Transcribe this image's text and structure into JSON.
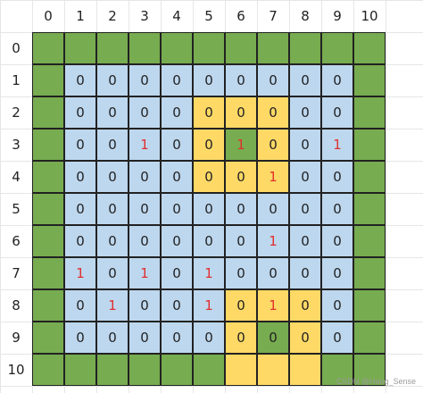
{
  "col_headers": [
    "0",
    "1",
    "2",
    "3",
    "4",
    "5",
    "6",
    "7",
    "8",
    "9",
    "10"
  ],
  "row_headers": [
    "0",
    "1",
    "2",
    "3",
    "4",
    "5",
    "6",
    "7",
    "8",
    "9",
    "10"
  ],
  "colors": {
    "green": "#77ac50",
    "blue": "#bdd7ee",
    "yellow": "#ffd966",
    "red_text": "#e03030",
    "dark_text": "#222222"
  },
  "grid": [
    [
      "G",
      "G",
      "G",
      "G",
      "G",
      "G",
      "G",
      "G",
      "G",
      "G",
      "G"
    ],
    [
      "G",
      "B0",
      "B0",
      "B0",
      "B0",
      "B0",
      "B0",
      "B0",
      "B0",
      "B0",
      "G"
    ],
    [
      "G",
      "B0",
      "B0",
      "B0",
      "B0",
      "Y0",
      "Y0",
      "Y0",
      "B0",
      "B0",
      "G"
    ],
    [
      "G",
      "B0",
      "B0",
      "B1",
      "B0",
      "Y0",
      "G1",
      "Y0",
      "B0",
      "B1",
      "G"
    ],
    [
      "G",
      "B0",
      "B0",
      "B0",
      "B0",
      "Y0",
      "Y0",
      "Y1",
      "B0",
      "B0",
      "G"
    ],
    [
      "G",
      "B0",
      "B0",
      "B0",
      "B0",
      "B0",
      "B0",
      "B0",
      "B0",
      "B0",
      "G"
    ],
    [
      "G",
      "B0",
      "B0",
      "B0",
      "B0",
      "B0",
      "B0",
      "B1",
      "B0",
      "B0",
      "G"
    ],
    [
      "G",
      "B1",
      "B0",
      "B1",
      "B0",
      "B1",
      "B0",
      "B0",
      "B0",
      "B0",
      "G"
    ],
    [
      "G",
      "B0",
      "B1",
      "B0",
      "B0",
      "B1",
      "Y0",
      "Y1",
      "Y0",
      "B0",
      "G"
    ],
    [
      "G",
      "B0",
      "B0",
      "B0",
      "B0",
      "B0",
      "Y0",
      "G0",
      "Y0",
      "B0",
      "G"
    ],
    [
      "G",
      "G",
      "G",
      "G",
      "G",
      "G",
      "Y",
      "Y",
      "Y",
      "G",
      "G"
    ]
  ],
  "watermark": "CSDN @Hang_Sense"
}
